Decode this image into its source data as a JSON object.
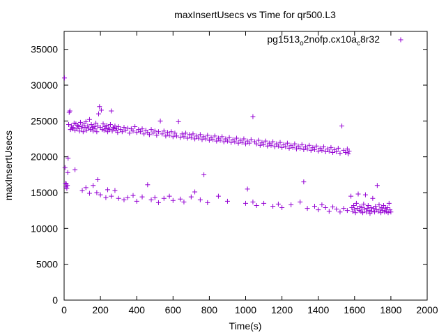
{
  "chart_data": {
    "type": "scatter",
    "title": "maxInsertUsecs vs Time for qr500.L3",
    "xlabel": "Time(s)",
    "ylabel": "maxInsertUsecs",
    "xlim": [
      0,
      2000
    ],
    "ylim": [
      0,
      37500
    ],
    "xticks": [
      0,
      200,
      400,
      600,
      800,
      1000,
      1200,
      1400,
      1600,
      1800,
      2000
    ],
    "yticks": [
      0,
      5000,
      10000,
      15000,
      20000,
      25000,
      30000,
      35000
    ],
    "grid": false,
    "legend_position": "top-right",
    "marker": "plus",
    "color": "#9400d3",
    "legend": {
      "name_main": "pg1513",
      "name_sub1": "o",
      "name_mid": "2nofp.cx10a",
      "name_sub2": "c",
      "name_end": "8r32"
    },
    "series": [
      {
        "points": [
          [
            2,
            31000
          ],
          [
            5,
            18500
          ],
          [
            8,
            16300
          ],
          [
            10,
            15800
          ],
          [
            12,
            16200
          ],
          [
            15,
            15600
          ],
          [
            18,
            16000
          ],
          [
            20,
            17800
          ],
          [
            22,
            19800
          ],
          [
            25,
            24500
          ],
          [
            28,
            26200
          ],
          [
            32,
            26400
          ],
          [
            35,
            23800
          ],
          [
            40,
            24300
          ],
          [
            45,
            23900
          ],
          [
            50,
            24100
          ],
          [
            55,
            24700
          ],
          [
            60,
            23700
          ],
          [
            65,
            24600
          ],
          [
            70,
            23900
          ],
          [
            75,
            24400
          ],
          [
            80,
            24200
          ],
          [
            85,
            23600
          ],
          [
            90,
            24800
          ],
          [
            95,
            24000
          ],
          [
            100,
            24300
          ],
          [
            105,
            23500
          ],
          [
            110,
            24600
          ],
          [
            115,
            24100
          ],
          [
            120,
            24900
          ],
          [
            125,
            23700
          ],
          [
            130,
            24300
          ],
          [
            135,
            24000
          ],
          [
            140,
            25200
          ],
          [
            145,
            23800
          ],
          [
            150,
            24500
          ],
          [
            155,
            24100
          ],
          [
            160,
            23600
          ],
          [
            165,
            24200
          ],
          [
            170,
            23900
          ],
          [
            175,
            24700
          ],
          [
            180,
            23500
          ],
          [
            185,
            24300
          ],
          [
            190,
            26000
          ],
          [
            195,
            27000
          ],
          [
            200,
            24100
          ],
          [
            205,
            26500
          ],
          [
            210,
            23800
          ],
          [
            215,
            24600
          ],
          [
            220,
            23700
          ],
          [
            225,
            24200
          ],
          [
            230,
            23900
          ],
          [
            235,
            24400
          ],
          [
            240,
            23500
          ],
          [
            245,
            24000
          ],
          [
            250,
            23800
          ],
          [
            255,
            24500
          ],
          [
            260,
            26400
          ],
          [
            265,
            23600
          ],
          [
            270,
            24100
          ],
          [
            275,
            23900
          ],
          [
            280,
            24300
          ],
          [
            285,
            23700
          ],
          [
            290,
            24000
          ],
          [
            295,
            23400
          ],
          [
            300,
            24200
          ],
          [
            310,
            23800
          ],
          [
            320,
            23500
          ],
          [
            330,
            24100
          ],
          [
            340,
            23700
          ],
          [
            350,
            24000
          ],
          [
            360,
            23300
          ],
          [
            370,
            23900
          ],
          [
            380,
            23600
          ],
          [
            390,
            24200
          ],
          [
            400,
            23400
          ],
          [
            410,
            23800
          ],
          [
            420,
            23500
          ],
          [
            430,
            23900
          ],
          [
            440,
            23200
          ],
          [
            450,
            23700
          ],
          [
            460,
            23400
          ],
          [
            470,
            23100
          ],
          [
            480,
            23800
          ],
          [
            490,
            23300
          ],
          [
            500,
            23600
          ],
          [
            510,
            23000
          ],
          [
            520,
            23500
          ],
          [
            530,
            25000
          ],
          [
            540,
            23200
          ],
          [
            550,
            23600
          ],
          [
            560,
            22900
          ],
          [
            570,
            23400
          ],
          [
            580,
            23000
          ],
          [
            590,
            23500
          ],
          [
            600,
            22800
          ],
          [
            610,
            23300
          ],
          [
            620,
            22900
          ],
          [
            630,
            24900
          ],
          [
            640,
            22700
          ],
          [
            650,
            23200
          ],
          [
            660,
            22800
          ],
          [
            670,
            23300
          ],
          [
            680,
            22600
          ],
          [
            690,
            23100
          ],
          [
            700,
            22700
          ],
          [
            710,
            23200
          ],
          [
            720,
            22500
          ],
          [
            730,
            22900
          ],
          [
            740,
            22600
          ],
          [
            750,
            23100
          ],
          [
            760,
            22400
          ],
          [
            770,
            22800
          ],
          [
            780,
            22500
          ],
          [
            790,
            23000
          ],
          [
            800,
            22300
          ],
          [
            810,
            22700
          ],
          [
            820,
            22400
          ],
          [
            830,
            22900
          ],
          [
            840,
            22200
          ],
          [
            850,
            22600
          ],
          [
            860,
            22300
          ],
          [
            870,
            22800
          ],
          [
            880,
            22100
          ],
          [
            890,
            22500
          ],
          [
            900,
            22200
          ],
          [
            910,
            22700
          ],
          [
            920,
            22000
          ],
          [
            930,
            22400
          ],
          [
            940,
            22100
          ],
          [
            950,
            22600
          ],
          [
            960,
            21900
          ],
          [
            970,
            22300
          ],
          [
            980,
            22000
          ],
          [
            990,
            22500
          ],
          [
            1000,
            21800
          ],
          [
            1010,
            22200
          ],
          [
            1020,
            21900
          ],
          [
            1030,
            22400
          ],
          [
            1040,
            25600
          ],
          [
            1050,
            22100
          ],
          [
            1060,
            21800
          ],
          [
            1070,
            22300
          ],
          [
            1080,
            21600
          ],
          [
            1090,
            22000
          ],
          [
            1100,
            21700
          ],
          [
            1110,
            22200
          ],
          [
            1120,
            21500
          ],
          [
            1130,
            21900
          ],
          [
            1140,
            21600
          ],
          [
            1150,
            22100
          ],
          [
            1160,
            21400
          ],
          [
            1170,
            21800
          ],
          [
            1180,
            21500
          ],
          [
            1190,
            22000
          ],
          [
            1200,
            21300
          ],
          [
            1210,
            21700
          ],
          [
            1220,
            21400
          ],
          [
            1230,
            21900
          ],
          [
            1240,
            21200
          ],
          [
            1250,
            21600
          ],
          [
            1260,
            21300
          ],
          [
            1270,
            21800
          ],
          [
            1280,
            21100
          ],
          [
            1290,
            21500
          ],
          [
            1300,
            21200
          ],
          [
            1310,
            21700
          ],
          [
            1320,
            21000
          ],
          [
            1330,
            21400
          ],
          [
            1340,
            21100
          ],
          [
            1350,
            21600
          ],
          [
            1360,
            20900
          ],
          [
            1370,
            21300
          ],
          [
            1380,
            21000
          ],
          [
            1390,
            21500
          ],
          [
            1400,
            20800
          ],
          [
            1410,
            21200
          ],
          [
            1420,
            20900
          ],
          [
            1430,
            21400
          ],
          [
            1440,
            20700
          ],
          [
            1450,
            21100
          ],
          [
            1460,
            20800
          ],
          [
            1470,
            21300
          ],
          [
            1480,
            20600
          ],
          [
            1490,
            21000
          ],
          [
            1500,
            20700
          ],
          [
            1510,
            21200
          ],
          [
            1520,
            20500
          ],
          [
            1530,
            24300
          ],
          [
            1540,
            20900
          ],
          [
            1550,
            20600
          ],
          [
            1560,
            21100
          ],
          [
            1565,
            20400
          ],
          [
            1570,
            20800
          ],
          [
            60,
            18200
          ],
          [
            100,
            15300
          ],
          [
            120,
            15700
          ],
          [
            140,
            14900
          ],
          [
            160,
            16000
          ],
          [
            180,
            15000
          ],
          [
            185,
            16800
          ],
          [
            200,
            14700
          ],
          [
            230,
            14300
          ],
          [
            240,
            15400
          ],
          [
            260,
            14500
          ],
          [
            280,
            15300
          ],
          [
            300,
            14200
          ],
          [
            330,
            14000
          ],
          [
            350,
            14300
          ],
          [
            380,
            14600
          ],
          [
            400,
            13800
          ],
          [
            430,
            14400
          ],
          [
            460,
            16100
          ],
          [
            480,
            14000
          ],
          [
            500,
            14300
          ],
          [
            520,
            13600
          ],
          [
            550,
            14200
          ],
          [
            580,
            14500
          ],
          [
            600,
            13900
          ],
          [
            640,
            14100
          ],
          [
            660,
            13700
          ],
          [
            700,
            14400
          ],
          [
            720,
            15100
          ],
          [
            750,
            14000
          ],
          [
            770,
            17500
          ],
          [
            790,
            13600
          ],
          [
            850,
            14500
          ],
          [
            900,
            13800
          ],
          [
            1000,
            13500
          ],
          [
            1010,
            15500
          ],
          [
            1040,
            13700
          ],
          [
            1060,
            13200
          ],
          [
            1100,
            13500
          ],
          [
            1150,
            13100
          ],
          [
            1180,
            13400
          ],
          [
            1200,
            12900
          ],
          [
            1250,
            13300
          ],
          [
            1300,
            13700
          ],
          [
            1320,
            16500
          ],
          [
            1340,
            12800
          ],
          [
            1380,
            13100
          ],
          [
            1400,
            12600
          ],
          [
            1420,
            13300
          ],
          [
            1440,
            12900
          ],
          [
            1460,
            12400
          ],
          [
            1480,
            13000
          ],
          [
            1500,
            12700
          ],
          [
            1520,
            12300
          ],
          [
            1540,
            12800
          ],
          [
            1560,
            12500
          ],
          [
            1580,
            14500
          ],
          [
            1585,
            12900
          ],
          [
            1590,
            12400
          ],
          [
            1595,
            13200
          ],
          [
            1600,
            12700
          ],
          [
            1605,
            12200
          ],
          [
            1610,
            13500
          ],
          [
            1615,
            12800
          ],
          [
            1620,
            14800
          ],
          [
            1625,
            12500
          ],
          [
            1630,
            13100
          ],
          [
            1635,
            12400
          ],
          [
            1640,
            12900
          ],
          [
            1645,
            12200
          ],
          [
            1650,
            13400
          ],
          [
            1655,
            12700
          ],
          [
            1660,
            14700
          ],
          [
            1665,
            12300
          ],
          [
            1670,
            12800
          ],
          [
            1675,
            13200
          ],
          [
            1680,
            12500
          ],
          [
            1685,
            12100
          ],
          [
            1690,
            12900
          ],
          [
            1695,
            12400
          ],
          [
            1700,
            14200
          ],
          [
            1705,
            12800
          ],
          [
            1710,
            12300
          ],
          [
            1715,
            13100
          ],
          [
            1720,
            12600
          ],
          [
            1725,
            16000
          ],
          [
            1730,
            12400
          ],
          [
            1735,
            13300
          ],
          [
            1740,
            12700
          ],
          [
            1745,
            12200
          ],
          [
            1750,
            12900
          ],
          [
            1755,
            12500
          ],
          [
            1760,
            13200
          ],
          [
            1765,
            12300
          ],
          [
            1770,
            12800
          ],
          [
            1775,
            12400
          ],
          [
            1780,
            12900
          ],
          [
            1785,
            12200
          ],
          [
            1790,
            13500
          ],
          [
            1795,
            12600
          ],
          [
            1800,
            12300
          ]
        ]
      }
    ]
  }
}
